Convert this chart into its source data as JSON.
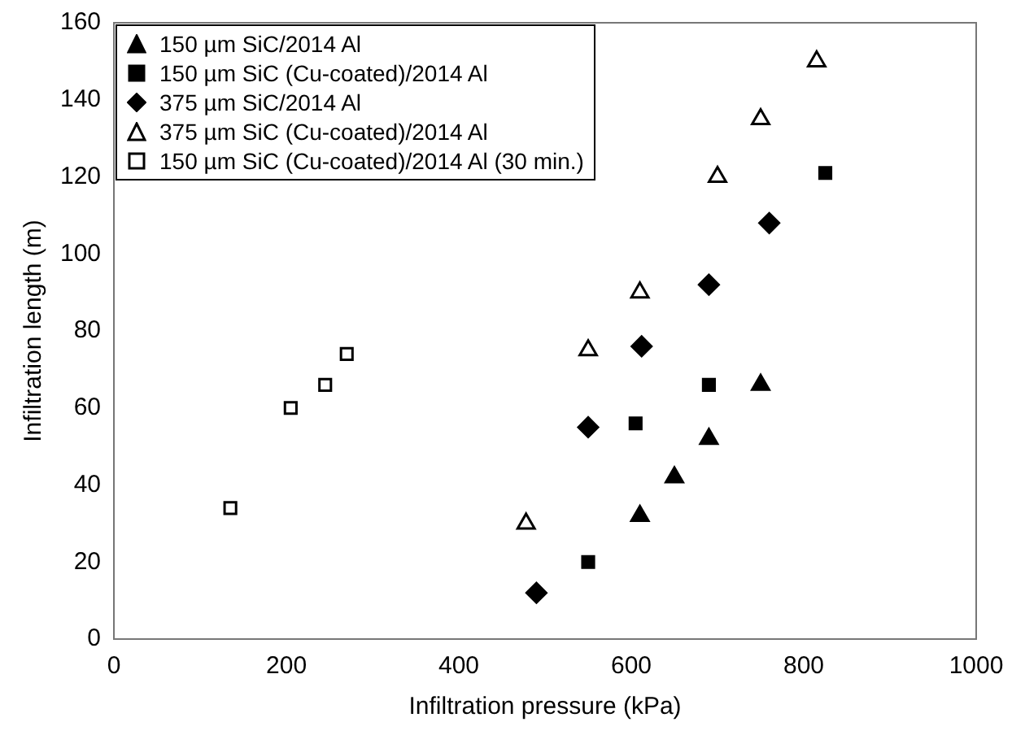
{
  "chart_data": {
    "type": "scatter",
    "xlabel": "Infiltration pressure (kPa)",
    "ylabel": "Infiltration length (m)",
    "xlim": [
      0,
      1000
    ],
    "xticks": [
      0,
      200,
      400,
      600,
      800,
      1000
    ],
    "ylim": [
      0,
      160
    ],
    "yticks": [
      0,
      20,
      40,
      60,
      80,
      100,
      120,
      140,
      160
    ],
    "grid": false,
    "legend": "top left",
    "series": [
      {
        "name": "150 µm SiC/2014 Al",
        "color": "#000000",
        "marker": "triangle",
        "x": [
          610,
          650,
          690,
          750
        ],
        "values": [
          32,
          42,
          52,
          66
        ]
      },
      {
        "name": "150 µm SiC (Cu-coated)/2014 Al",
        "color": "#000000",
        "marker": "square",
        "x": [
          550,
          605,
          690,
          825
        ],
        "values": [
          20,
          56,
          66,
          121
        ]
      },
      {
        "name": "375 µm SiC/2014 Al",
        "color": "#000000",
        "marker": "diamond",
        "x": [
          490,
          550,
          612,
          690,
          760
        ],
        "values": [
          12,
          55,
          76,
          92,
          108
        ]
      },
      {
        "name": "375 µm SiC (Cu-coated)/2014 Al",
        "color": "#ffffff",
        "marker": "triangle",
        "x": [
          478,
          550,
          610,
          700,
          750,
          815
        ],
        "values": [
          30,
          75,
          90,
          120,
          135,
          150
        ]
      },
      {
        "name": "150 µm SiC (Cu-coated)/2014 Al (30 min.)",
        "color": "#ffffff",
        "marker": "square",
        "x": [
          135,
          205,
          245,
          270
        ],
        "values": [
          34,
          60,
          66,
          74
        ]
      }
    ]
  }
}
